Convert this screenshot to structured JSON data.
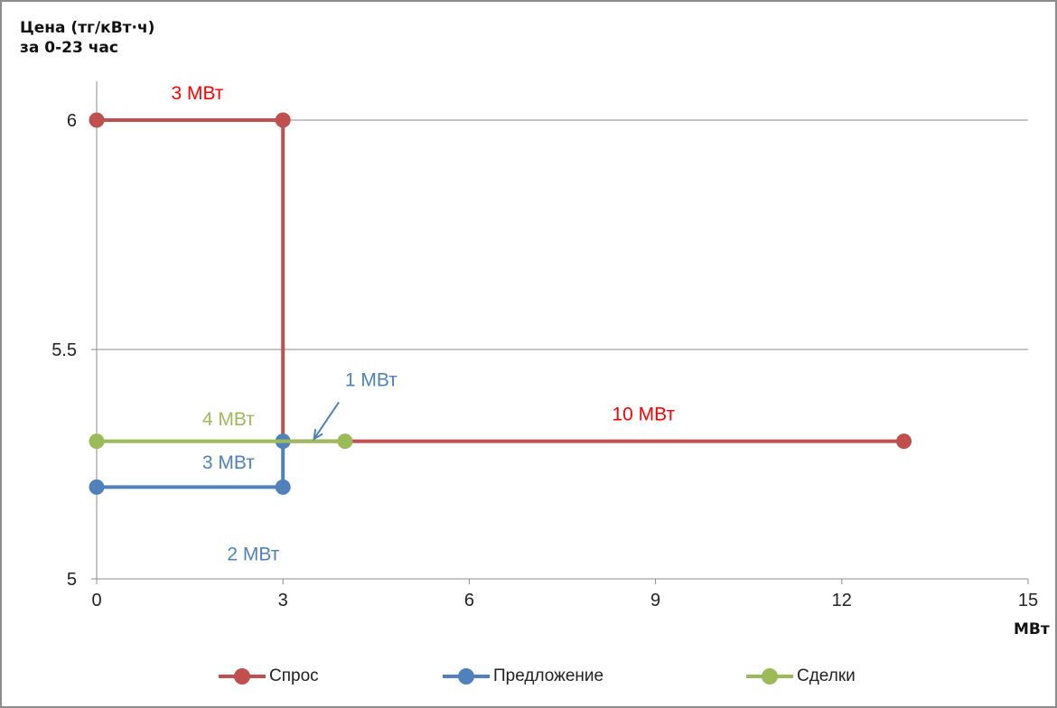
{
  "chart_data": {
    "type": "line",
    "ylabel": "Цена (тг/кВт·ч)\nза 0-23 час",
    "xlabel": "МВт",
    "xlim": [
      0,
      15
    ],
    "ylim": [
      5,
      6.1
    ],
    "x_ticks": [
      0,
      3,
      6,
      9,
      12,
      15
    ],
    "y_ticks": [
      5,
      5.5,
      6
    ],
    "y_tick_labels": [
      "5",
      "5.5",
      "6"
    ],
    "grid": "horizontal",
    "legend_position": "bottom",
    "series": [
      {
        "name": "Спрос",
        "color": "#c0504d",
        "points": [
          [
            0,
            6
          ],
          [
            3,
            6
          ],
          [
            3,
            5.3
          ],
          [
            4,
            5.3
          ],
          [
            13,
            5.3
          ]
        ],
        "markers": [
          [
            0,
            6
          ],
          [
            3,
            6
          ],
          [
            13,
            5.3
          ]
        ]
      },
      {
        "name": "Предложение",
        "color": "#4f81bd",
        "points": [
          [
            0,
            5.2
          ],
          [
            3,
            5.2
          ],
          [
            3,
            5.3
          ]
        ],
        "markers": [
          [
            0,
            5.2
          ],
          [
            3,
            5.2
          ],
          [
            3,
            5.3
          ]
        ]
      },
      {
        "name": "Сделки",
        "color": "#9bbb59",
        "points": [
          [
            0,
            5.3
          ],
          [
            4,
            5.3
          ]
        ],
        "markers": [
          [
            0,
            5.3
          ],
          [
            4,
            5.3
          ]
        ]
      }
    ],
    "annotations": [
      {
        "text": "3 МВт",
        "color": "#ff0000",
        "x": 1.2,
        "y": 6.045
      },
      {
        "text": "10 МВт",
        "color": "#ff0000",
        "x": 8.3,
        "y": 5.345
      },
      {
        "text": "4 МВт",
        "color": "#9bbb59",
        "x": 1.7,
        "y": 5.335
      },
      {
        "text": "3 МВт",
        "color": "#4f81bd",
        "x": 1.7,
        "y": 5.24
      },
      {
        "text": "2 МВт",
        "color": "#4f81bd",
        "x": 2.1,
        "y": 5.04
      },
      {
        "text": "1 МВт",
        "color": "#4f81bd",
        "x": 4.0,
        "y": 5.42
      }
    ],
    "arrow": {
      "from": [
        3.9,
        5.385
      ],
      "to": [
        3.5,
        5.305
      ],
      "color": "#4f81bd"
    }
  }
}
